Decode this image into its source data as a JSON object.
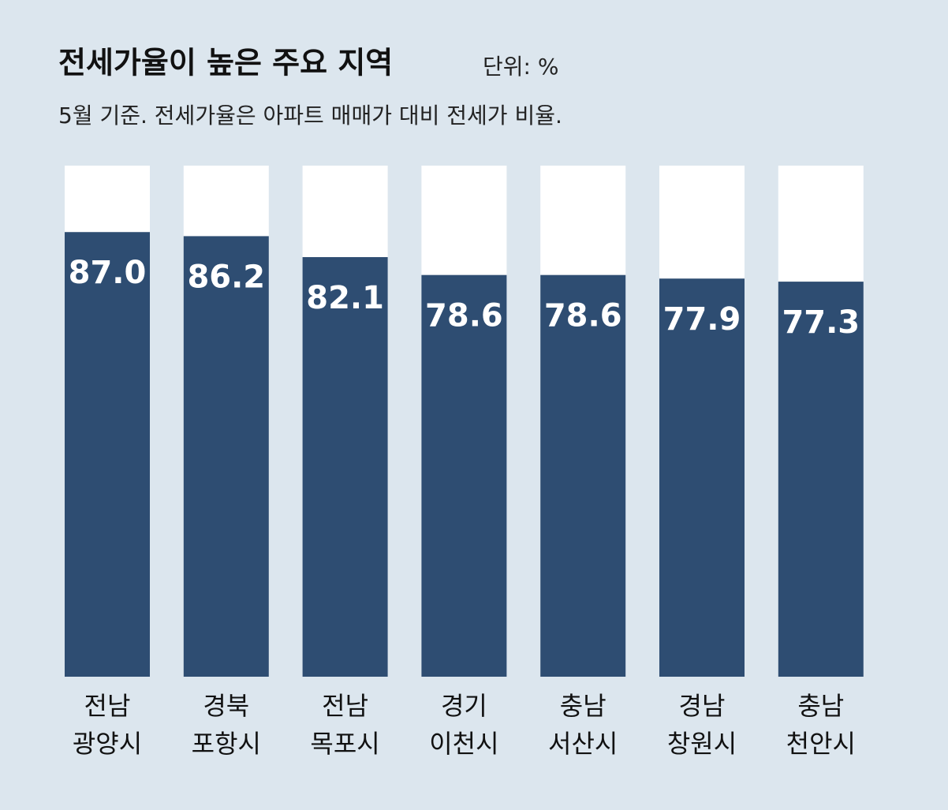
{
  "chart_data": {
    "type": "bar",
    "title": "전세가율이 높은 주요 지역",
    "unit": "단위: %",
    "subtitle": "5월 기준. 전세가율은 아파트 매매가 대비  전세가 비율.",
    "categories": [
      [
        "전남",
        "광양시"
      ],
      [
        "경북",
        "포항시"
      ],
      [
        "전남",
        "목포시"
      ],
      [
        "경기",
        "이천시"
      ],
      [
        "충남",
        "서산시"
      ],
      [
        "경남",
        "창원시"
      ],
      [
        "충남",
        "천안시"
      ]
    ],
    "values": [
      87.0,
      86.2,
      82.1,
      78.6,
      78.6,
      77.9,
      77.3
    ],
    "value_labels": [
      "87.0",
      "86.2",
      "82.1",
      "78.6",
      "78.6",
      "77.9",
      "77.3"
    ],
    "color": "#2e4d72",
    "ylim": [
      0,
      100
    ]
  }
}
